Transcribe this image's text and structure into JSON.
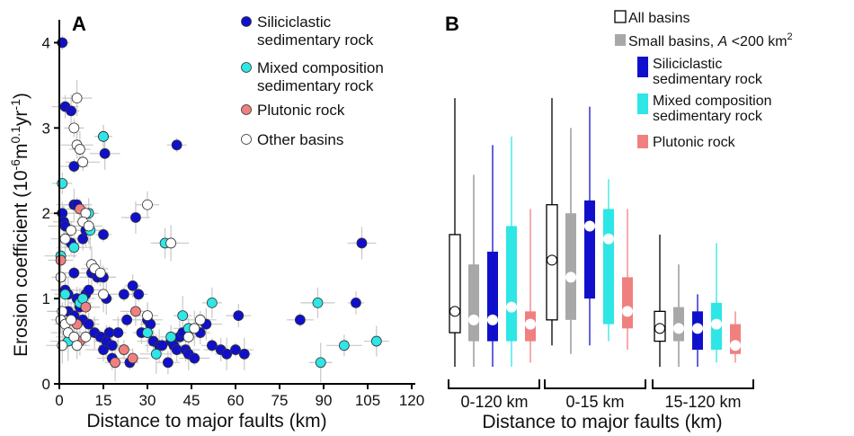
{
  "panel_a": {
    "letter": "A",
    "ylabel_main": "Erosion coefficient (10",
    "ylabel_sup1": "-6",
    "ylabel_mid": "m",
    "ylabel_sup2": "0.1",
    "ylabel_mid2": "yr",
    "ylabel_sup3": "-1",
    "ylabel_end": ")",
    "xlabel": "Distance to major faults (km)",
    "x_ticks": [
      "0",
      "15",
      "30",
      "45",
      "60",
      "75",
      "90",
      "105",
      "120"
    ],
    "y_ticks": [
      "0",
      "1",
      "2",
      "3",
      "4"
    ],
    "legend": [
      {
        "line1": "Siliciclastic",
        "line2": "sedimentary rock"
      },
      {
        "line1": "Mixed composition",
        "line2": "sedimentary rock"
      },
      {
        "line1": "Plutonic rock",
        "line2": ""
      },
      {
        "line1": "Other basins",
        "line2": ""
      }
    ]
  },
  "panel_b": {
    "letter": "B",
    "xlabel": "Distance to major faults (km)",
    "groups": [
      "0-120 km",
      "0-15 km",
      "15-120 km"
    ],
    "legend_all": "All basins",
    "legend_small_pre": "Small basins, ",
    "legend_small_var": "A",
    "legend_small_post": " <200 km",
    "legend_small_sup": "2",
    "legend_sil_1": "Siliciclastic",
    "legend_sil_2": "sedimentary rock",
    "legend_mix_1": "Mixed composition",
    "legend_mix_2": "sedimentary rock",
    "legend_plu": "Plutonic rock"
  },
  "colors": {
    "siliciclastic": "#1010cc",
    "mixed": "#2ee6e6",
    "plutonic": "#f08080",
    "other": "#ffffff",
    "small": "#a8a8a8",
    "errorbar": "#c8c8c8"
  },
  "chart_data": [
    {
      "type": "scatter",
      "xlabel": "Distance to major faults (km)",
      "ylabel": "Erosion coefficient (10^-6 m^0.1 yr^-1)",
      "xlim": [
        0,
        120
      ],
      "ylim": [
        0,
        4.3
      ],
      "legend_placement": "top-right",
      "series": [
        {
          "name": "Siliciclastic sedimentary rock",
          "points": [
            [
              1,
              4.0
            ],
            [
              2,
              3.25
            ],
            [
              4,
              3.2
            ],
            [
              5,
              2.55
            ],
            [
              15,
              2.9
            ],
            [
              15.5,
              2.7
            ],
            [
              40,
              2.8
            ],
            [
              1,
              2.0
            ],
            [
              1.5,
              1.9
            ],
            [
              2,
              1.85
            ],
            [
              4,
              1.65
            ],
            [
              5,
              2.1
            ],
            [
              6,
              2.1
            ],
            [
              8,
              1.7
            ],
            [
              9,
              1.8
            ],
            [
              15,
              1.75
            ],
            [
              2,
              1.1
            ],
            [
              3,
              1.05
            ],
            [
              5,
              1.3
            ],
            [
              6,
              1.0
            ],
            [
              7,
              0.9
            ],
            [
              9,
              1.05
            ],
            [
              10,
              1.1
            ],
            [
              11,
              1.3
            ],
            [
              13,
              1.25
            ],
            [
              15,
              1.25
            ],
            [
              16,
              1.0
            ],
            [
              22,
              1.05
            ],
            [
              25,
              1.15
            ],
            [
              26,
              1.95
            ],
            [
              27,
              1.05
            ],
            [
              3,
              0.85
            ],
            [
              5,
              0.8
            ],
            [
              8,
              0.75
            ],
            [
              10,
              0.7
            ],
            [
              12,
              0.6
            ],
            [
              14,
              0.55
            ],
            [
              15,
              0.4
            ],
            [
              16,
              0.5
            ],
            [
              17,
              0.6
            ],
            [
              18,
              0.45
            ],
            [
              20,
              0.6
            ],
            [
              23,
              0.75
            ],
            [
              28,
              0.6
            ],
            [
              30,
              0.75
            ],
            [
              31,
              0.7
            ],
            [
              32,
              0.5
            ],
            [
              34,
              0.45
            ],
            [
              35,
              0.45
            ],
            [
              37,
              0.25
            ],
            [
              38,
              0.5
            ],
            [
              39,
              0.45
            ],
            [
              40,
              0.4
            ],
            [
              41,
              0.55
            ],
            [
              42,
              0.6
            ],
            [
              43,
              0.4
            ],
            [
              44,
              0.35
            ],
            [
              46,
              0.3
            ],
            [
              48,
              0.6
            ],
            [
              50,
              0.7
            ],
            [
              52,
              0.45
            ],
            [
              55,
              0.4
            ],
            [
              57,
              0.35
            ],
            [
              60,
              0.4
            ],
            [
              61,
              0.8
            ],
            [
              63,
              0.35
            ],
            [
              82,
              0.75
            ],
            [
              101,
              0.95
            ],
            [
              103,
              1.65
            ],
            [
              24,
              0.25
            ],
            [
              18,
              0.3
            ]
          ]
        },
        {
          "name": "Mixed composition sedimentary rock",
          "points": [
            [
              1,
              2.35
            ],
            [
              0.5,
              1.5
            ],
            [
              2,
              1.05
            ],
            [
              5,
              1.6
            ],
            [
              7,
              0.95
            ],
            [
              3,
              0.5
            ],
            [
              8,
              1.0
            ],
            [
              10,
              2.0
            ],
            [
              10.5,
              1.8
            ],
            [
              15,
              2.9
            ],
            [
              36,
              1.65
            ],
            [
              42,
              0.8
            ],
            [
              44,
              0.65
            ],
            [
              52,
              0.95
            ],
            [
              33,
              0.35
            ],
            [
              38,
              0.55
            ],
            [
              88,
              0.95
            ],
            [
              89,
              0.25
            ],
            [
              97,
              0.45
            ],
            [
              108,
              0.5
            ],
            [
              30,
              0.6
            ]
          ]
        },
        {
          "name": "Plutonic rock",
          "points": [
            [
              0.5,
              1.45
            ],
            [
              6,
              0.7
            ],
            [
              7,
              2.05
            ],
            [
              7,
              0.5
            ],
            [
              9,
              0.9
            ],
            [
              22,
              0.4
            ],
            [
              26,
              0.85
            ],
            [
              19,
              0.25
            ],
            [
              25,
              0.3
            ]
          ]
        },
        {
          "name": "Other basins",
          "points": [
            [
              6,
              3.35
            ],
            [
              5,
              3.0
            ],
            [
              6,
              2.8
            ],
            [
              7,
              2.75
            ],
            [
              8,
              2.6
            ],
            [
              30,
              2.1
            ],
            [
              38,
              1.65
            ],
            [
              9,
              2.0
            ],
            [
              8,
              1.9
            ],
            [
              10,
              1.85
            ],
            [
              4,
              1.8
            ],
            [
              2,
              1.7
            ],
            [
              0.5,
              1.25
            ],
            [
              1,
              0.85
            ],
            [
              0.5,
              0.75
            ],
            [
              1,
              0.45
            ],
            [
              2,
              0.7
            ],
            [
              3,
              0.6
            ],
            [
              4,
              0.75
            ],
            [
              5,
              0.55
            ],
            [
              6,
              0.45
            ],
            [
              11,
              1.4
            ],
            [
              12,
              1.35
            ],
            [
              14,
              1.3
            ],
            [
              15,
              1.05
            ],
            [
              9,
              0.55
            ],
            [
              44,
              0.55
            ],
            [
              46,
              0.65
            ],
            [
              48,
              0.75
            ],
            [
              30,
              0.8
            ]
          ]
        }
      ]
    },
    {
      "type": "box",
      "xlabel": "Distance to major faults (km)",
      "ylim": [
        0,
        4.3
      ],
      "categories": [
        "0-120 km",
        "0-15 km",
        "15-120 km"
      ],
      "series": [
        {
          "name": "All basins",
          "boxes": [
            {
              "min": 0.2,
              "q1": 0.6,
              "median": 0.85,
              "q3": 1.75,
              "max": 3.35
            },
            {
              "min": 0.45,
              "q1": 0.75,
              "median": 1.45,
              "q3": 2.1,
              "max": 3.35
            },
            {
              "min": 0.2,
              "q1": 0.5,
              "median": 0.65,
              "q3": 0.85,
              "max": 1.75
            }
          ]
        },
        {
          "name": "Small basins, A <200 km2",
          "boxes": [
            {
              "min": 0.2,
              "q1": 0.5,
              "median": 0.75,
              "q3": 1.4,
              "max": 2.45
            },
            {
              "min": 0.35,
              "q1": 0.75,
              "median": 1.25,
              "q3": 2.0,
              "max": 3.0
            },
            {
              "min": 0.2,
              "q1": 0.5,
              "median": 0.65,
              "q3": 0.9,
              "max": 1.4
            }
          ]
        },
        {
          "name": "Siliciclastic sedimentary rock",
          "boxes": [
            {
              "min": 0.2,
              "q1": 0.5,
              "median": 0.75,
              "q3": 1.55,
              "max": 2.8
            },
            {
              "min": 0.45,
              "q1": 1.0,
              "median": 1.85,
              "q3": 2.15,
              "max": 3.25
            },
            {
              "min": 0.2,
              "q1": 0.4,
              "median": 0.65,
              "q3": 0.85,
              "max": 1.05
            }
          ]
        },
        {
          "name": "Mixed composition sedimentary rock",
          "boxes": [
            {
              "min": 0.2,
              "q1": 0.5,
              "median": 0.9,
              "q3": 1.85,
              "max": 2.9
            },
            {
              "min": 0.5,
              "q1": 0.7,
              "median": 1.7,
              "q3": 2.05,
              "max": 2.4
            },
            {
              "min": 0.25,
              "q1": 0.4,
              "median": 0.7,
              "q3": 0.95,
              "max": 1.65
            }
          ]
        },
        {
          "name": "Plutonic rock",
          "boxes": [
            {
              "min": 0.25,
              "q1": 0.5,
              "median": 0.7,
              "q3": 0.85,
              "max": 2.05
            },
            {
              "min": 0.4,
              "q1": 0.65,
              "median": 0.85,
              "q3": 1.25,
              "max": 2.05
            },
            {
              "min": 0.25,
              "q1": 0.35,
              "median": 0.45,
              "q3": 0.7,
              "max": 0.85
            }
          ]
        }
      ]
    }
  ]
}
